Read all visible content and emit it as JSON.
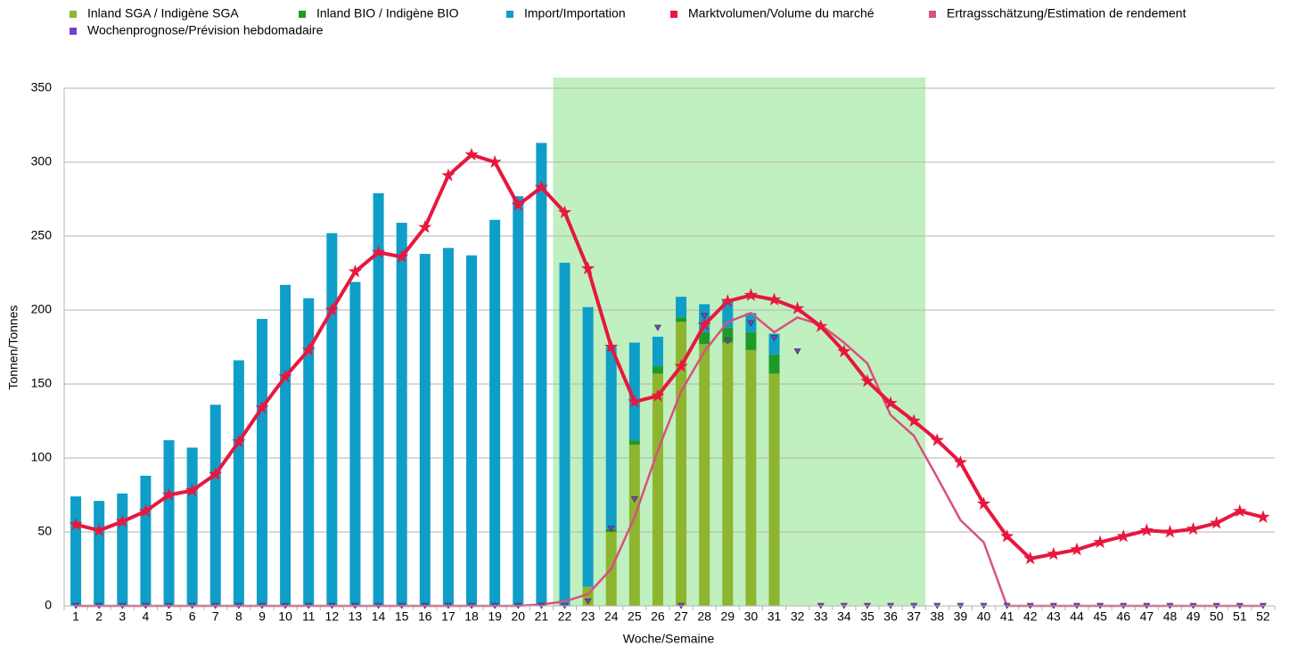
{
  "chart_data": {
    "type": "bar-line",
    "x_label": "Woche/Semaine",
    "y_label": "Tonnen/Tonnes",
    "categories": [
      "1",
      "2",
      "3",
      "4",
      "5",
      "6",
      "7",
      "8",
      "9",
      "10",
      "11",
      "12",
      "13",
      "14",
      "15",
      "16",
      "17",
      "18",
      "19",
      "20",
      "21",
      "22",
      "23",
      "24",
      "25",
      "26",
      "27",
      "28",
      "29",
      "30",
      "31",
      "32",
      "33",
      "34",
      "35",
      "36",
      "37",
      "38",
      "39",
      "40",
      "41",
      "42",
      "43",
      "44",
      "45",
      "46",
      "47",
      "48",
      "49",
      "50",
      "51",
      "52"
    ],
    "ylim": [
      0,
      350
    ],
    "yticks": [
      0,
      50,
      100,
      150,
      200,
      250,
      300,
      350
    ],
    "grid": true,
    "highlight": {
      "from": "22",
      "to": "37",
      "color": "#c0f0c0"
    },
    "series": [
      {
        "name": "Inland SGA / Indigène SGA",
        "type": "bar",
        "color": "#8db52e",
        "values": [
          0,
          0,
          0,
          0,
          0,
          0,
          0,
          0,
          0,
          0,
          0,
          0,
          0,
          0,
          0,
          0,
          0,
          0,
          0,
          0,
          0,
          0,
          13,
          50,
          109,
          157,
          192,
          177,
          178,
          173,
          157,
          0,
          0,
          0,
          0,
          0,
          0,
          0,
          0,
          0,
          0,
          0,
          0,
          0,
          0,
          0,
          0,
          0,
          0,
          0,
          0,
          0
        ]
      },
      {
        "name": "Inland BIO / Indigène BIO",
        "type": "bar",
        "color": "#1e9a2a",
        "values": [
          0,
          0,
          0,
          0,
          0,
          0,
          0,
          0,
          0,
          0,
          0,
          0,
          0,
          0,
          0,
          0,
          0,
          0,
          0,
          0,
          0,
          0,
          0,
          2,
          3,
          5,
          3,
          8,
          10,
          12,
          13,
          0,
          0,
          0,
          0,
          0,
          0,
          0,
          0,
          0,
          0,
          0,
          0,
          0,
          0,
          0,
          0,
          0,
          0,
          0,
          0,
          0
        ]
      },
      {
        "name": "Import/Importation",
        "type": "bar",
        "color": "#0e9ec8",
        "values": [
          74,
          71,
          76,
          88,
          112,
          107,
          136,
          166,
          194,
          217,
          208,
          252,
          219,
          279,
          259,
          238,
          242,
          237,
          261,
          277,
          313,
          232,
          189,
          123,
          66,
          20,
          14,
          19,
          19,
          13,
          14,
          0,
          0,
          0,
          0,
          0,
          0,
          0,
          0,
          0,
          0,
          0,
          0,
          0,
          0,
          0,
          0,
          0,
          0,
          0,
          0,
          0
        ]
      },
      {
        "name": "Marktvolumen/Volume du marché",
        "type": "line-star",
        "color": "#e8173e",
        "values": [
          55,
          51,
          57,
          64,
          75,
          78,
          89,
          111,
          134,
          155,
          173,
          200,
          226,
          239,
          236,
          256,
          291,
          305,
          300,
          271,
          283,
          266,
          228,
          175,
          138,
          142,
          162,
          190,
          206,
          210,
          207,
          201,
          189,
          172,
          152,
          137,
          125,
          112,
          97,
          69,
          47,
          32,
          35,
          38,
          43,
          47,
          51,
          50,
          52,
          56,
          64,
          60
        ]
      },
      {
        "name": "Ertragsschätzung/Estimation de rendement",
        "type": "line",
        "color": "#d9507f",
        "values": [
          0,
          0,
          0,
          0,
          0,
          0,
          0,
          0,
          0,
          0,
          0,
          0,
          0,
          0,
          0,
          0,
          0,
          0,
          0,
          0,
          1,
          3,
          8,
          25,
          60,
          105,
          145,
          172,
          192,
          198,
          185,
          195,
          190,
          178,
          164,
          129,
          115,
          87,
          58,
          43,
          0,
          0,
          0,
          0,
          0,
          0,
          0,
          0,
          0,
          0,
          0,
          0
        ]
      },
      {
        "name": "Wochenprognose/Prévision hebdomadaire",
        "type": "triangle",
        "color": "#7a3fc8",
        "values": [
          0,
          0,
          0,
          0,
          0,
          0,
          0,
          0,
          0,
          0,
          0,
          0,
          0,
          0,
          0,
          0,
          0,
          0,
          0,
          0,
          0,
          0,
          3,
          52,
          72,
          188,
          0,
          196,
          179,
          191,
          181,
          172,
          0,
          0,
          0,
          0,
          0,
          0,
          0,
          0,
          0,
          0,
          0,
          0,
          0,
          0,
          0,
          0,
          0,
          0,
          0,
          0
        ]
      }
    ]
  }
}
